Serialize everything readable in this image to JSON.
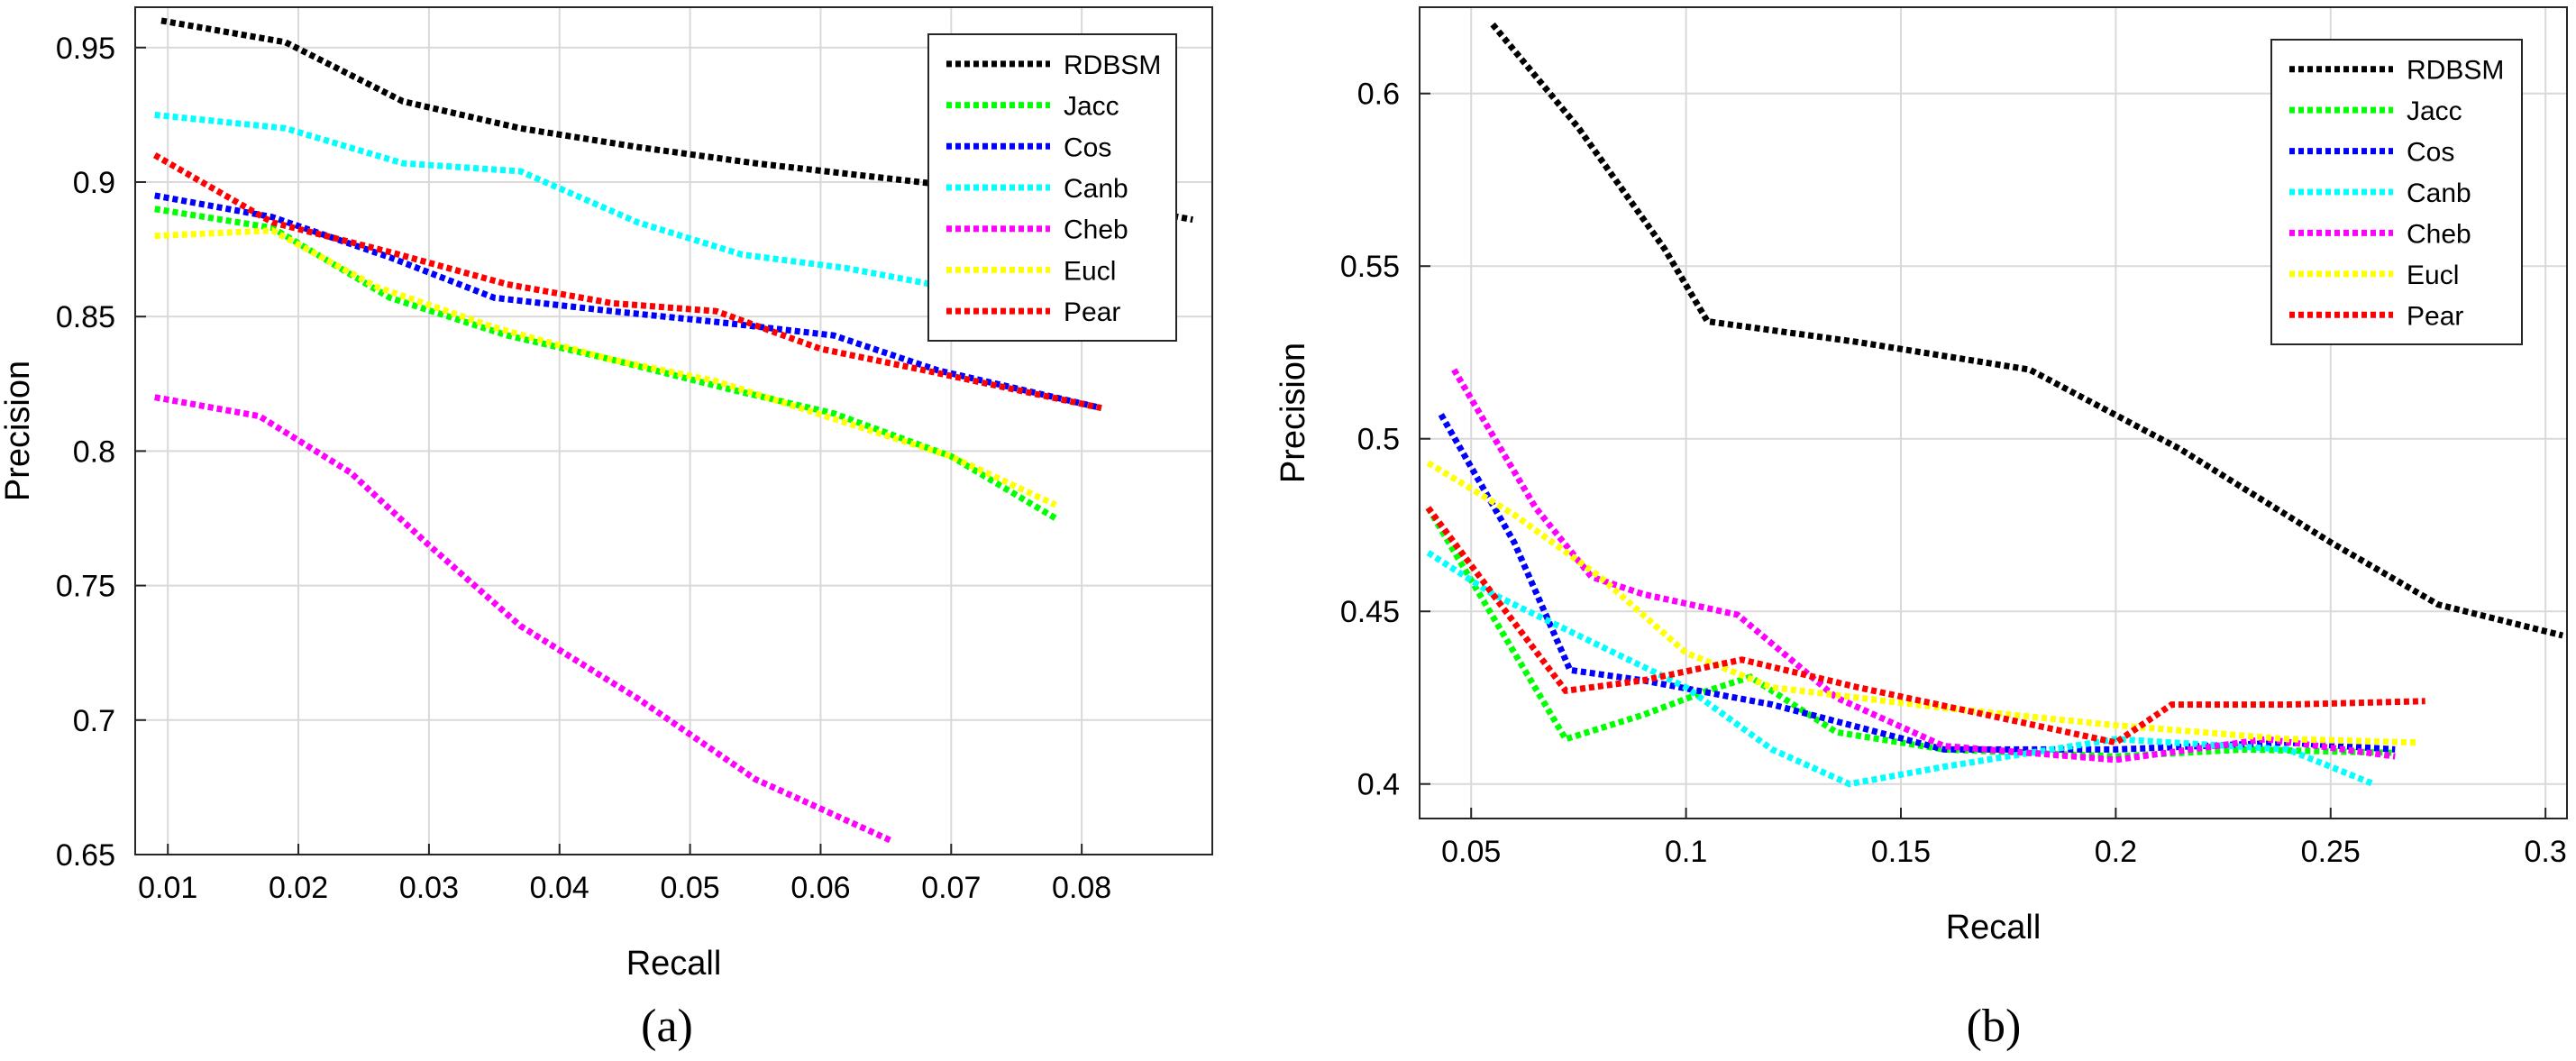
{
  "chart_data": [
    {
      "type": "line",
      "caption": "(a)",
      "xlabel": "Recall",
      "ylabel": "Precision",
      "xlim": [
        0.0075,
        0.09
      ],
      "ylim": [
        0.65,
        0.965
      ],
      "xticks": [
        0.01,
        0.02,
        0.03,
        0.04,
        0.05,
        0.06,
        0.07,
        0.08
      ],
      "xtick_labels": [
        "0.01",
        "0.02",
        "0.03",
        "0.04",
        "0.05",
        "0.06",
        "0.07",
        "0.08"
      ],
      "yticks": [
        0.65,
        0.7,
        0.75,
        0.8,
        0.85,
        0.9,
        0.95
      ],
      "ytick_labels": [
        "0.65",
        "0.7",
        "0.75",
        "0.8",
        "0.85",
        "0.9",
        "0.95"
      ],
      "grid": true,
      "legend_position": "top-right",
      "series": [
        {
          "name": "RDBSM",
          "color": "#000000",
          "x": [
            0.0095,
            0.019,
            0.028,
            0.037,
            0.046,
            0.055,
            0.064,
            0.073,
            0.082,
            0.0885
          ],
          "y": [
            0.96,
            0.952,
            0.93,
            0.92,
            0.913,
            0.907,
            0.902,
            0.897,
            0.892,
            0.886
          ]
        },
        {
          "name": "Jacc",
          "color": "#00ff00",
          "x": [
            0.009,
            0.018,
            0.027,
            0.036,
            0.044,
            0.053,
            0.061,
            0.07,
            0.078
          ],
          "y": [
            0.89,
            0.883,
            0.857,
            0.843,
            0.834,
            0.823,
            0.814,
            0.798,
            0.775
          ]
        },
        {
          "name": "Cos",
          "color": "#0000ff",
          "x": [
            0.009,
            0.018,
            0.027,
            0.035,
            0.044,
            0.052,
            0.061,
            0.069,
            0.0815
          ],
          "y": [
            0.895,
            0.887,
            0.872,
            0.857,
            0.852,
            0.848,
            0.843,
            0.83,
            0.816
          ]
        },
        {
          "name": "Canb",
          "color": "#00ffff",
          "x": [
            0.009,
            0.019,
            0.028,
            0.037,
            0.046,
            0.054,
            0.062,
            0.0685
          ],
          "y": [
            0.925,
            0.92,
            0.907,
            0.904,
            0.885,
            0.873,
            0.868,
            0.862
          ]
        },
        {
          "name": "Cheb",
          "color": "#ff00ff",
          "x": [
            0.009,
            0.017,
            0.024,
            0.03,
            0.037,
            0.046,
            0.055,
            0.0655
          ],
          "y": [
            0.82,
            0.813,
            0.792,
            0.765,
            0.735,
            0.708,
            0.678,
            0.655
          ]
        },
        {
          "name": "Eucl",
          "color": "#ffff00",
          "x": [
            0.009,
            0.018,
            0.026,
            0.035,
            0.044,
            0.052,
            0.061,
            0.07,
            0.078
          ],
          "y": [
            0.88,
            0.882,
            0.861,
            0.846,
            0.834,
            0.826,
            0.812,
            0.798,
            0.78
          ]
        },
        {
          "name": "Pear",
          "color": "#ff0000",
          "x": [
            0.009,
            0.018,
            0.027,
            0.036,
            0.044,
            0.052,
            0.06,
            0.068,
            0.0815
          ],
          "y": [
            0.91,
            0.885,
            0.874,
            0.862,
            0.855,
            0.852,
            0.838,
            0.83,
            0.816
          ]
        }
      ]
    },
    {
      "type": "line",
      "caption": "(b)",
      "xlabel": "Recall",
      "ylabel": "Precision",
      "xlim": [
        0.038,
        0.305
      ],
      "ylim": [
        0.39,
        0.625
      ],
      "xticks": [
        0.05,
        0.1,
        0.15,
        0.2,
        0.25,
        0.3
      ],
      "xtick_labels": [
        "0.05",
        "0.1",
        "0.15",
        "0.2",
        "0.25",
        "0.3"
      ],
      "yticks": [
        0.4,
        0.45,
        0.5,
        0.55,
        0.6
      ],
      "ytick_labels": [
        "0.4",
        "0.45",
        "0.5",
        "0.55",
        "0.6"
      ],
      "grid": true,
      "legend_position": "top-right",
      "series": [
        {
          "name": "RDBSM",
          "color": "#000000",
          "x": [
            0.055,
            0.075,
            0.095,
            0.105,
            0.14,
            0.18,
            0.215,
            0.25,
            0.275,
            0.304
          ],
          "y": [
            0.62,
            0.59,
            0.555,
            0.534,
            0.528,
            0.52,
            0.497,
            0.47,
            0.452,
            0.443
          ]
        },
        {
          "name": "Jacc",
          "color": "#00ff00",
          "x": [
            0.04,
            0.072,
            0.09,
            0.105,
            0.115,
            0.135,
            0.16,
            0.2,
            0.23,
            0.265
          ],
          "y": [
            0.48,
            0.413,
            0.42,
            0.427,
            0.431,
            0.415,
            0.41,
            0.408,
            0.41,
            0.409
          ]
        },
        {
          "name": "Cos",
          "color": "#0000ff",
          "x": [
            0.043,
            0.06,
            0.073,
            0.09,
            0.12,
            0.16,
            0.2,
            0.24,
            0.265
          ],
          "y": [
            0.507,
            0.47,
            0.433,
            0.43,
            0.423,
            0.41,
            0.41,
            0.412,
            0.41
          ]
        },
        {
          "name": "Canb",
          "color": "#00ffff",
          "x": [
            0.04,
            0.055,
            0.075,
            0.1,
            0.12,
            0.138,
            0.16,
            0.2,
            0.24,
            0.26
          ],
          "y": [
            0.467,
            0.455,
            0.443,
            0.428,
            0.41,
            0.4,
            0.405,
            0.413,
            0.41,
            0.4
          ]
        },
        {
          "name": "Cheb",
          "color": "#ff00ff",
          "x": [
            0.046,
            0.065,
            0.078,
            0.09,
            0.112,
            0.135,
            0.16,
            0.2,
            0.235,
            0.265
          ],
          "y": [
            0.52,
            0.48,
            0.46,
            0.455,
            0.449,
            0.425,
            0.411,
            0.407,
            0.413,
            0.408
          ]
        },
        {
          "name": "Eucl",
          "color": "#ffff00",
          "x": [
            0.04,
            0.06,
            0.08,
            0.1,
            0.12,
            0.16,
            0.2,
            0.24,
            0.27
          ],
          "y": [
            0.493,
            0.478,
            0.46,
            0.438,
            0.428,
            0.422,
            0.417,
            0.413,
            0.412
          ]
        },
        {
          "name": "Pear",
          "color": "#ff0000",
          "x": [
            0.04,
            0.055,
            0.072,
            0.09,
            0.113,
            0.14,
            0.17,
            0.2,
            0.213,
            0.24,
            0.272
          ],
          "y": [
            0.48,
            0.455,
            0.427,
            0.43,
            0.436,
            0.428,
            0.42,
            0.412,
            0.423,
            0.423,
            0.424
          ]
        }
      ]
    }
  ]
}
